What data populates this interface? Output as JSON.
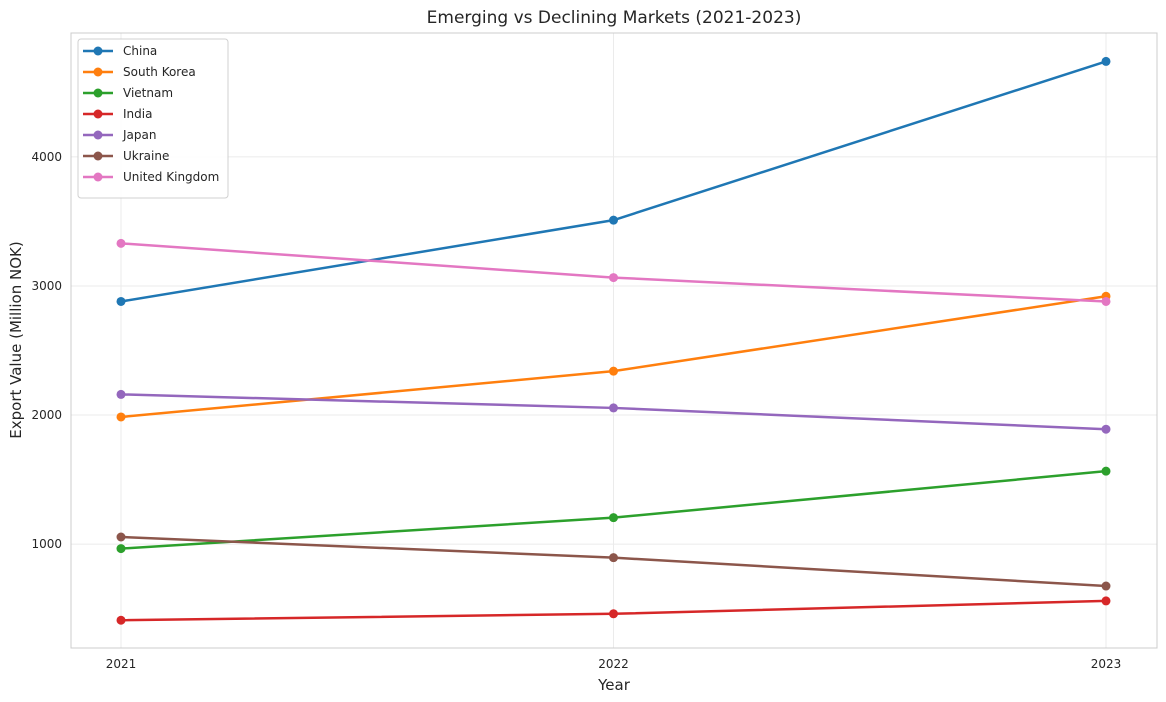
{
  "chart_data": {
    "type": "line",
    "title": "Emerging vs Declining Markets (2021-2023)",
    "xlabel": "Year",
    "ylabel": "Export Value (Million NOK)",
    "x": [
      "2021",
      "2022",
      "2023"
    ],
    "ylim": [
      195,
      4960
    ],
    "yticks": [
      1000,
      2000,
      3000,
      4000
    ],
    "grid": true,
    "legend_position": "top-left",
    "series": [
      {
        "name": "China",
        "color": "#1f77b4",
        "values": [
          2880,
          3510,
          4740
        ]
      },
      {
        "name": "South Korea",
        "color": "#ff7f0e",
        "values": [
          1985,
          2340,
          2920
        ]
      },
      {
        "name": "Vietnam",
        "color": "#2ca02c",
        "values": [
          965,
          1205,
          1565
        ]
      },
      {
        "name": "India",
        "color": "#d62728",
        "values": [
          410,
          460,
          560
        ]
      },
      {
        "name": "Japan",
        "color": "#9467bd",
        "values": [
          2160,
          2055,
          1890
        ]
      },
      {
        "name": "Ukraine",
        "color": "#8c564b",
        "values": [
          1055,
          895,
          675
        ]
      },
      {
        "name": "United Kingdom",
        "color": "#e377c2",
        "values": [
          3330,
          3065,
          2880
        ]
      }
    ]
  }
}
